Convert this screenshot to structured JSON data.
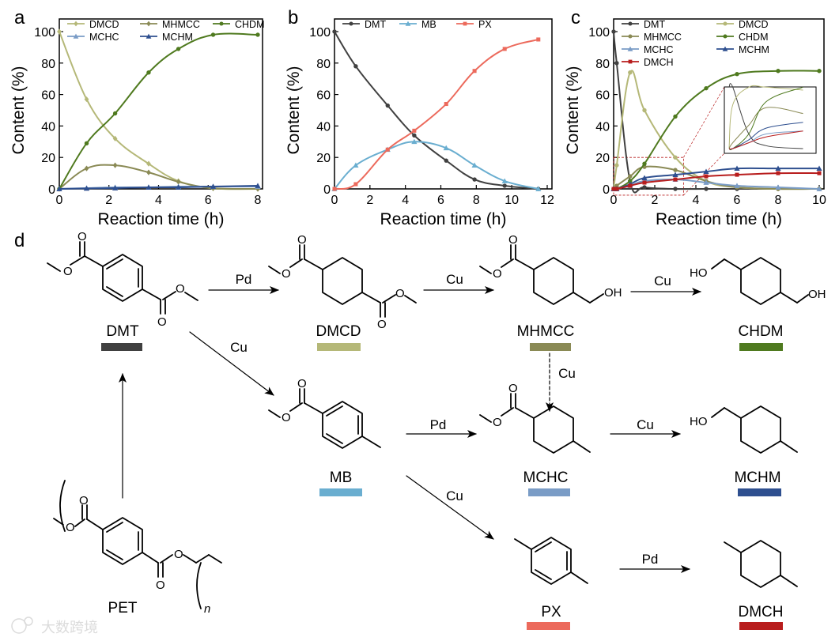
{
  "panel_labels": {
    "a": "a",
    "b": "b",
    "c": "c",
    "d": "d"
  },
  "chart_data": [
    {
      "panel": "a",
      "type": "line",
      "xlabel": "Reaction time (h)",
      "ylabel": "Content (%)",
      "xlim": [
        0,
        8
      ],
      "ylim": [
        0,
        100
      ],
      "xticks": [
        "0",
        "2",
        "4",
        "6",
        "8"
      ],
      "yticks": [
        "0",
        "20",
        "40",
        "60",
        "80",
        "100"
      ],
      "legend_columns": 3,
      "series": [
        {
          "name": "DMCD",
          "color": "#b5b878",
          "marker": "diamond",
          "x": [
            0,
            1.1,
            2.25,
            3.6,
            4.8,
            6.2,
            8
          ],
          "y": [
            100,
            57,
            32,
            16,
            5,
            0.3,
            0
          ]
        },
        {
          "name": "MHMCC",
          "color": "#8a8a55",
          "marker": "diamond",
          "x": [
            0,
            1.1,
            2.25,
            3.6,
            4.8,
            6.2,
            8
          ],
          "y": [
            0,
            13,
            15,
            10.5,
            4.5,
            0.5,
            0
          ]
        },
        {
          "name": "CHDM",
          "color": "#4f7a1f",
          "marker": "circle",
          "x": [
            0,
            1.1,
            2.25,
            3.6,
            4.8,
            6.2,
            8
          ],
          "y": [
            0,
            29,
            48,
            74,
            89,
            98,
            98
          ]
        },
        {
          "name": "MCHC",
          "color": "#7a9cc6",
          "marker": "triangle",
          "x": [
            0,
            1.1,
            2.25,
            3.6,
            4.8,
            6.2,
            8
          ],
          "y": [
            0,
            0.5,
            1,
            1,
            1.5,
            1.5,
            1.5
          ]
        },
        {
          "name": "MCHM",
          "color": "#2e4f8f",
          "marker": "triangle",
          "x": [
            0,
            1.1,
            2.25,
            3.6,
            4.8,
            6.2,
            8
          ],
          "y": [
            0,
            0.3,
            0.5,
            1,
            1,
            1.5,
            2
          ]
        }
      ]
    },
    {
      "panel": "b",
      "type": "line",
      "xlabel": "Reaction time (h)",
      "ylabel": "Content (%)",
      "xlim": [
        0,
        12
      ],
      "ylim": [
        0,
        100
      ],
      "xticks": [
        "0",
        "2",
        "4",
        "6",
        "8",
        "10",
        "12"
      ],
      "yticks": [
        "0",
        "20",
        "40",
        "60",
        "80",
        "100"
      ],
      "legend_columns": 3,
      "series": [
        {
          "name": "DMT",
          "color": "#404040",
          "marker": "circle",
          "x": [
            0,
            1.2,
            3,
            4.5,
            6.3,
            7.9,
            9.6,
            11.5
          ],
          "y": [
            100,
            78,
            53,
            34,
            18,
            6,
            2,
            0
          ]
        },
        {
          "name": "MB",
          "color": "#6aaed0",
          "marker": "triangle",
          "x": [
            0,
            1.2,
            3,
            4.5,
            6.3,
            7.9,
            9.6,
            11.5
          ],
          "y": [
            0,
            15,
            25,
            30,
            26,
            15,
            5,
            0
          ]
        },
        {
          "name": "PX",
          "color": "#ec6a5c",
          "marker": "square",
          "x": [
            0,
            1.2,
            3,
            4.5,
            6.3,
            7.9,
            9.6,
            11.5
          ],
          "y": [
            0,
            3,
            25,
            37,
            54,
            75,
            89,
            95
          ]
        }
      ]
    },
    {
      "panel": "c",
      "type": "line",
      "xlabel": "Reaction time (h)",
      "ylabel": "Content (%)",
      "xlim": [
        0,
        10
      ],
      "ylim": [
        0,
        100
      ],
      "xticks": [
        "0",
        "2",
        "4",
        "6",
        "8",
        "10"
      ],
      "yticks": [
        "0",
        "20",
        "40",
        "60",
        "80",
        "100"
      ],
      "legend_columns": 2,
      "inset": true,
      "series": [
        {
          "name": "DMT",
          "color": "#404040",
          "marker": "circle",
          "x": [
            0,
            0.15,
            0.8,
            1.5,
            3,
            4.5,
            6,
            8,
            10
          ],
          "y": [
            100,
            80,
            5,
            1,
            0,
            0,
            0,
            0,
            0
          ]
        },
        {
          "name": "DMCD",
          "color": "#b5b878",
          "marker": "circle",
          "x": [
            0,
            0.15,
            0.8,
            1.5,
            3,
            4.5,
            6,
            8,
            10
          ],
          "y": [
            0,
            15,
            74,
            50,
            20,
            5,
            1,
            0,
            0
          ]
        },
        {
          "name": "MHMCC",
          "color": "#8a8a55",
          "marker": "circle",
          "x": [
            0,
            0.15,
            0.8,
            1.5,
            3,
            4.5,
            6,
            8,
            10
          ],
          "y": [
            0,
            2,
            8,
            14,
            12,
            5,
            1,
            0,
            0
          ]
        },
        {
          "name": "CHDM",
          "color": "#4f7a1f",
          "marker": "circle",
          "x": [
            0,
            0.15,
            0.8,
            1.5,
            3,
            4.5,
            6,
            8,
            10
          ],
          "y": [
            0,
            0,
            5,
            16,
            46,
            64,
            73,
            75,
            75
          ]
        },
        {
          "name": "MCHC",
          "color": "#7a9cc6",
          "marker": "triangle",
          "x": [
            0,
            0.15,
            0.8,
            1.5,
            3,
            4.5,
            6,
            8,
            10
          ],
          "y": [
            0,
            0,
            2,
            5,
            6,
            4,
            2,
            1,
            0
          ]
        },
        {
          "name": "MCHM",
          "color": "#2e4f8f",
          "marker": "triangle",
          "x": [
            0,
            0.15,
            0.8,
            1.5,
            3,
            4.5,
            6,
            8,
            10
          ],
          "y": [
            0,
            0,
            3,
            7,
            9,
            11,
            13,
            13,
            13
          ]
        },
        {
          "name": "DMCH",
          "color": "#b81d1d",
          "marker": "square",
          "x": [
            0,
            0.15,
            0.8,
            1.5,
            3,
            4.5,
            6,
            8,
            10
          ],
          "y": [
            0,
            0,
            2,
            4,
            6,
            8,
            9,
            10,
            10
          ]
        }
      ]
    }
  ],
  "scheme": {
    "compounds": [
      {
        "id": "DMT",
        "label": "DMT",
        "color": "#404040"
      },
      {
        "id": "DMCD",
        "label": "DMCD",
        "color": "#b5b878"
      },
      {
        "id": "MHMCC",
        "label": "MHMCC",
        "color": "#8a8a55"
      },
      {
        "id": "CHDM",
        "label": "CHDM",
        "color": "#4f7a1f"
      },
      {
        "id": "MB",
        "label": "MB",
        "color": "#6aaed0"
      },
      {
        "id": "MCHC",
        "label": "MCHC",
        "color": "#7a9cc6"
      },
      {
        "id": "MCHM",
        "label": "MCHM",
        "color": "#2e4f8f"
      },
      {
        "id": "PX",
        "label": "PX",
        "color": "#ec6a5c"
      },
      {
        "id": "DMCH",
        "label": "DMCH",
        "color": "#b81d1d"
      },
      {
        "id": "PET",
        "label": "PET",
        "color": ""
      }
    ],
    "arrows": [
      {
        "id": "dmt-dmcd",
        "catalyst": "Pd"
      },
      {
        "id": "dmcd-mhmcc",
        "catalyst": "Cu"
      },
      {
        "id": "mhmcc-chdm",
        "catalyst": "Cu"
      },
      {
        "id": "dmt-mb",
        "catalyst": "Cu"
      },
      {
        "id": "mhmcc-mchc",
        "catalyst": "Cu"
      },
      {
        "id": "mb-mchc",
        "catalyst": "Pd"
      },
      {
        "id": "mchc-mchm",
        "catalyst": "Cu"
      },
      {
        "id": "mb-px",
        "catalyst": "Cu"
      },
      {
        "id": "px-dmch",
        "catalyst": "Pd"
      },
      {
        "id": "pet-dmt",
        "catalyst": ""
      }
    ],
    "atoms": {
      "oxygen": "O",
      "hydroxyl_right": "OH",
      "hydroxyl_left": "HO",
      "repeat_index": "n"
    }
  },
  "watermark": "大数跨境"
}
